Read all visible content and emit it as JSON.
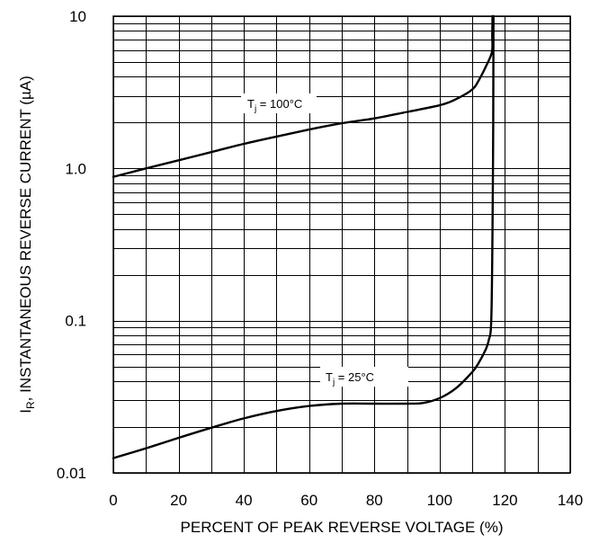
{
  "chart_data": {
    "type": "line",
    "xlabel": "PERCENT OF PEAK REVERSE VOLTAGE (%)",
    "ylabel_parts": {
      "main": "I",
      "sub": "R",
      "rest": ", INSTANTANEOUS REVERSE CURRENT (µA)"
    },
    "xlim": [
      0,
      140
    ],
    "ylim": [
      0.01,
      10
    ],
    "y_scale": "log",
    "grid": true,
    "x_ticks": [
      "0",
      "20",
      "40",
      "60",
      "80",
      "100",
      "120",
      "140"
    ],
    "y_ticks": [
      "0.01",
      "0.1",
      "1.0",
      "10"
    ],
    "series": [
      {
        "label_parts": {
          "main": "T",
          "sub": "j",
          "rest": " = 100°C"
        },
        "x": [
          0,
          10,
          20,
          30,
          40,
          50,
          60,
          70,
          80,
          90,
          100,
          105,
          110,
          112,
          114,
          116,
          116.1,
          116.2
        ],
        "y": [
          0.88,
          1.0,
          1.13,
          1.28,
          1.45,
          1.62,
          1.8,
          1.98,
          2.13,
          2.35,
          2.6,
          2.85,
          3.3,
          3.8,
          4.6,
          5.8,
          7.5,
          10
        ]
      },
      {
        "label_parts": {
          "main": "T",
          "sub": "j",
          "rest": " = 25°C"
        },
        "x": [
          0,
          10,
          20,
          30,
          40,
          50,
          60,
          70,
          80,
          90,
          95,
          100,
          105,
          110,
          112,
          114,
          115,
          115.8,
          116.2,
          116.4,
          116.5
        ],
        "y": [
          0.0125,
          0.0145,
          0.017,
          0.0198,
          0.0228,
          0.0255,
          0.0275,
          0.0285,
          0.0285,
          0.0285,
          0.0288,
          0.031,
          0.036,
          0.046,
          0.053,
          0.064,
          0.074,
          0.1,
          0.4,
          2.0,
          10
        ]
      }
    ]
  }
}
